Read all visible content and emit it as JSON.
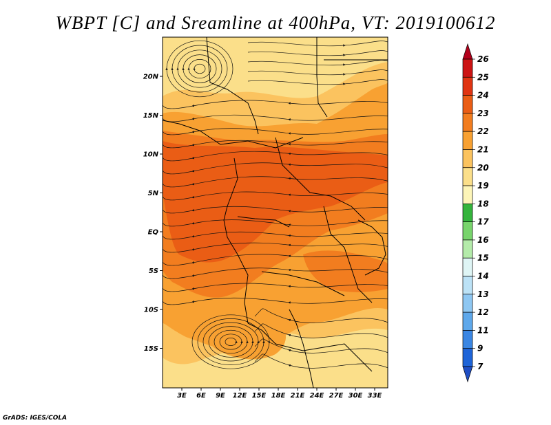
{
  "title": "WBPT [C] and Sreamline at 400hPa, VT: 2019100612",
  "footer": "GrADS: IGES/COLA",
  "map": {
    "lon_labels": [
      "3E",
      "6E",
      "9E",
      "12E",
      "15E",
      "18E",
      "21E",
      "24E",
      "27E",
      "30E",
      "33E"
    ],
    "lat_labels": [
      "20N",
      "15N",
      "10N",
      "5N",
      "EQ",
      "5S",
      "10S",
      "15S"
    ],
    "colors": {
      "fill_19": "#fbdf8a",
      "fill_20": "#fbc35f",
      "fill_21": "#f8a132",
      "fill_22": "#f27d1f",
      "fill_23": "#ea5d15"
    }
  },
  "colorbar": {
    "labels": [
      "26",
      "25",
      "24",
      "23",
      "22",
      "21",
      "20",
      "19",
      "18",
      "17",
      "16",
      "15",
      "14",
      "13",
      "12",
      "11",
      "9",
      "7"
    ],
    "colors": [
      "#b3001b",
      "#cc1414",
      "#e03412",
      "#ea5d15",
      "#f27d1f",
      "#f8a132",
      "#fbc35f",
      "#fbdf8a",
      "#fdf5b8",
      "#34b43c",
      "#78d46c",
      "#b4ebaa",
      "#dff5f5",
      "#bce2f6",
      "#8ec7f2",
      "#5ea8eb",
      "#3a86e3",
      "#1e64d8",
      "#1f4ec4"
    ]
  }
}
